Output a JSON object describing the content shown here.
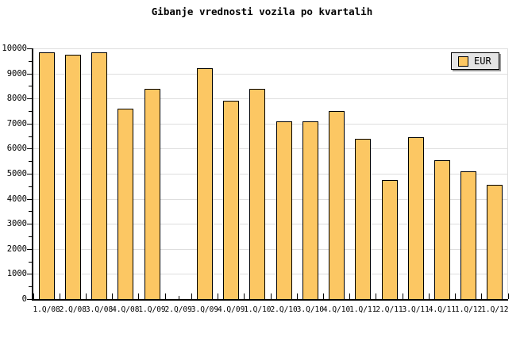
{
  "chart_data": {
    "type": "bar",
    "title": "Gibanje vrednosti vozila po kvartalih",
    "categories": [
      "1.Q/08",
      "2.Q/08",
      "3.Q/08",
      "4.Q/08",
      "1.Q/09",
      "2.Q/09",
      "3.Q/09",
      "4.Q/09",
      "1.Q/10",
      "2.Q/10",
      "3.Q/10",
      "4.Q/10",
      "1.Q/11",
      "2.Q/11",
      "3.Q/11",
      "4.Q/11",
      "1.Q/12",
      "1.Q/12"
    ],
    "series": [
      {
        "name": "EUR",
        "values": [
          9850,
          9750,
          9850,
          7600,
          8400,
          null,
          9200,
          7900,
          8400,
          7100,
          7100,
          7500,
          6400,
          4750,
          6450,
          5550,
          5100,
          4550
        ]
      }
    ],
    "xlabel": "",
    "ylabel": "",
    "ylim": [
      0,
      10000
    ],
    "y_tick_step": 1000,
    "y_minor_tick_step": 500,
    "y_tick_labels": [
      "0",
      "1000",
      "2000",
      "3000",
      "4000",
      "5000",
      "6000",
      "7000",
      "8000",
      "9000",
      "10000"
    ],
    "grid": true,
    "legend": {
      "label": "EUR",
      "position": "top-right"
    }
  },
  "colors": {
    "bar_fill": "#FCC763",
    "bar_border": "#000000",
    "grid_line": "#DEDEDE",
    "axis": "#000000",
    "background": "#FFFFFF",
    "legend_bg": "#E4E4E4",
    "legend_shadow": "#999999",
    "text": "#000000"
  }
}
